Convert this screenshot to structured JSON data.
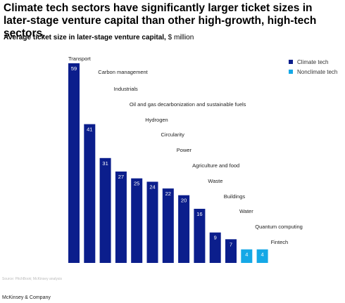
{
  "header": {
    "title": "Climate tech sectors have significantly larger ticket sizes in later-stage venture capital than other high-growth, high-tech sectors.",
    "subtitle_bold": "Average ticket size in later-stage venture capital,",
    "subtitle_unit": " $ million"
  },
  "legend": {
    "items": [
      {
        "label": "Climate tech",
        "color": "#0b1e8c"
      },
      {
        "label": "Nonclimate tech",
        "color": "#15a8e6"
      }
    ]
  },
  "source": "Source: PitchBook; McKinsey analysis",
  "footer": "McKinsey & Company",
  "chart_data": {
    "type": "bar",
    "title": "Climate tech sectors have significantly larger ticket sizes in later-stage venture capital than other high-growth, high-tech sectors.",
    "ylabel": "Average ticket size in later-stage venture capital, $ million",
    "ylim": [
      0,
      59
    ],
    "grid": false,
    "legend_position": "top-right",
    "categories": [
      "Transport",
      "Carbon management",
      "Industrials",
      "Oil and gas decarbonization and sustainable fuels",
      "Hydrogen",
      "Circularity",
      "Power",
      "Agriculture and food",
      "Waste",
      "Buildings",
      "Water",
      "Quantum computing",
      "Fintech"
    ],
    "values": [
      59,
      41,
      31,
      27,
      25,
      24,
      22,
      20,
      16,
      9,
      7,
      4,
      4
    ],
    "groups": [
      "Climate tech",
      "Climate tech",
      "Climate tech",
      "Climate tech",
      "Climate tech",
      "Climate tech",
      "Climate tech",
      "Climate tech",
      "Climate tech",
      "Climate tech",
      "Climate tech",
      "Nonclimate tech",
      "Nonclimate tech"
    ],
    "colors": {
      "Climate tech": "#0b1e8c",
      "Nonclimate tech": "#15a8e6"
    }
  }
}
